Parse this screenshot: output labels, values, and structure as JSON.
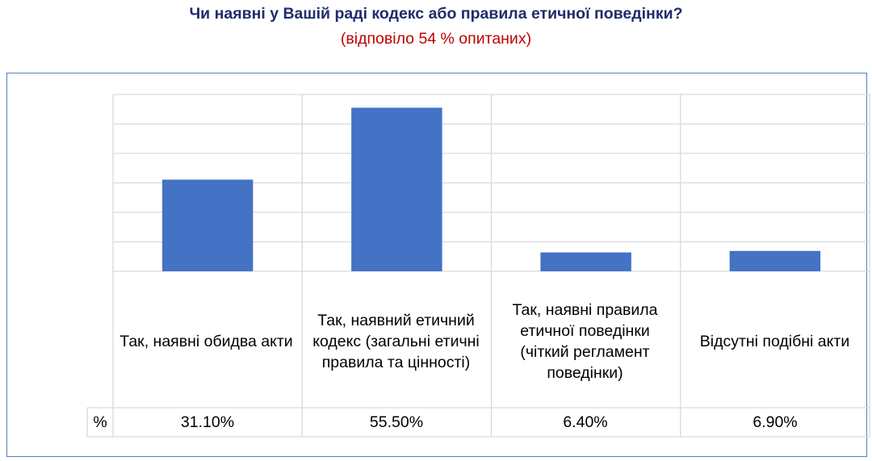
{
  "chart_data": {
    "type": "bar",
    "title": "Чи наявні у Вашій раді кодекс або правила етичної поведінки?",
    "subtitle": "(відповіло 54 % опитаних)",
    "categories": [
      "Так, наявні обидва акти",
      "Так, наявний етичний кодекс (загальні етичні правила та цінності)",
      "Так, наявні правила етичної поведінки (чіткий регламент поведінки)",
      "Відсутні подібні акти"
    ],
    "series": [
      {
        "name": "%",
        "values": [
          31.1,
          55.5,
          6.4,
          6.9
        ]
      }
    ],
    "value_labels": [
      "31.10%",
      "55.50%",
      "6.40%",
      "6.90%"
    ],
    "unit_label": "%",
    "ylim": [
      0,
      60
    ],
    "grid": true,
    "legend": "data-table",
    "colors": {
      "bar": "#4472c4",
      "grid": "#d9d9d9",
      "frame": "#4f81bd",
      "title": "#1f2d6b",
      "subtitle": "#c00000"
    }
  }
}
